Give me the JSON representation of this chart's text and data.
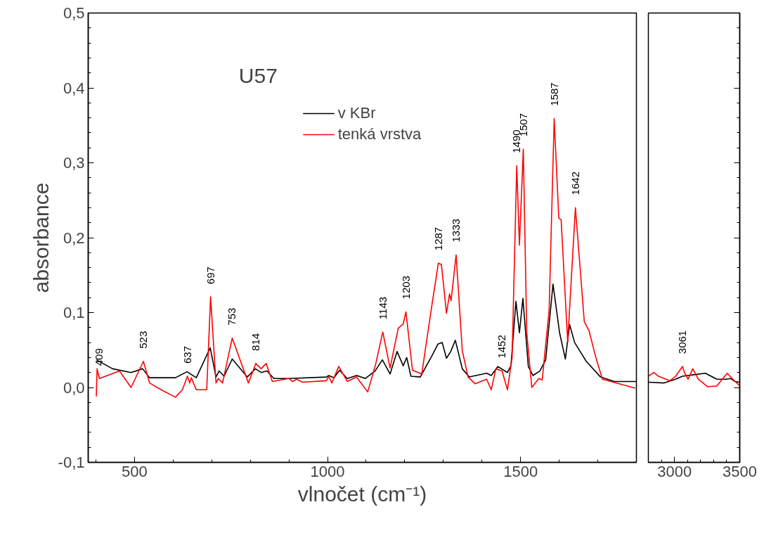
{
  "chart_data": [
    {
      "type": "line",
      "title": "U57",
      "xlabel": "vlnočet (cm⁻¹)",
      "ylabel": "absorbance",
      "xlim": [
        380,
        1800
      ],
      "ylim": [
        -0.1,
        0.5
      ],
      "xticks": [
        500,
        1000,
        1500
      ],
      "yticks": [
        {
          "value": -0.1,
          "label": "-0,1"
        },
        {
          "value": 0,
          "label": "0,0"
        },
        {
          "value": 0.1,
          "label": "0,1"
        },
        {
          "value": 0.2,
          "label": "0,2"
        },
        {
          "value": 0.3,
          "label": "0,3"
        },
        {
          "value": 0.4,
          "label": "0,4"
        },
        {
          "value": 0.5,
          "label": "0,5"
        }
      ],
      "grid": false,
      "legend": "top",
      "marker": "none",
      "line_style": "solid",
      "series": [
        {
          "name": "v KBr",
          "color": "#000000",
          "x": [
            401,
            443,
            491,
            521,
            539,
            606,
            636,
            660,
            696,
            711,
            719,
            732,
            753,
            792,
            813,
            828,
            843,
            861,
            900,
            997,
            1003,
            1017,
            1031,
            1051,
            1075,
            1098,
            1123,
            1142,
            1162,
            1180,
            1196,
            1205,
            1216,
            1240,
            1270,
            1286,
            1297,
            1308,
            1319,
            1331,
            1349,
            1367,
            1412,
            1424,
            1441,
            1466,
            1475,
            1488,
            1497,
            1506,
            1520,
            1532,
            1550,
            1565,
            1584,
            1601,
            1616,
            1627,
            1640,
            1670,
            1707,
            1743,
            1779,
            1799
          ],
          "values": [
            0.037,
            0.025,
            0.02,
            0.025,
            0.013,
            0.013,
            0.021,
            0.013,
            0.053,
            0.014,
            0.022,
            0.015,
            0.038,
            0.014,
            0.025,
            0.02,
            0.022,
            0.012,
            0.012,
            0.014,
            0.016,
            0.013,
            0.023,
            0.012,
            0.016,
            0.012,
            0.022,
            0.037,
            0.018,
            0.048,
            0.029,
            0.04,
            0.015,
            0.014,
            0.042,
            0.058,
            0.06,
            0.039,
            0.048,
            0.063,
            0.025,
            0.014,
            0.019,
            0.016,
            0.028,
            0.02,
            0.029,
            0.115,
            0.073,
            0.119,
            0.028,
            0.016,
            0.022,
            0.037,
            0.138,
            0.073,
            0.038,
            0.084,
            0.06,
            0.035,
            0.014,
            0.008,
            0.008,
            0.008
          ]
        },
        {
          "name": "tenká vrstva",
          "color": "#ff0000",
          "x": [
            401,
            403,
            409,
            425,
            461,
            491,
            523,
            539,
            569,
            606,
            624,
            637,
            643,
            647,
            660,
            687,
            697,
            711,
            717,
            728,
            753,
            795,
            814,
            828,
            841,
            857,
            900,
            909,
            920,
            935,
            997,
            1003,
            1011,
            1029,
            1051,
            1075,
            1104,
            1125,
            1143,
            1162,
            1183,
            1196,
            1203,
            1220,
            1244,
            1270,
            1287,
            1295,
            1308,
            1316,
            1320,
            1333,
            1349,
            1364,
            1382,
            1412,
            1424,
            1436,
            1452,
            1466,
            1478,
            1490,
            1497,
            1507,
            1516,
            1529,
            1547,
            1556,
            1574,
            1587,
            1599,
            1605,
            1622,
            1642,
            1665,
            1677,
            1695,
            1712,
            1797
          ],
          "values": [
            -0.012,
            0.025,
            0.012,
            0.015,
            0.022,
            0.0,
            0.035,
            0.006,
            -0.003,
            -0.013,
            -0.003,
            0.015,
            0.006,
            0.013,
            -0.003,
            -0.003,
            0.121,
            0.006,
            0.012,
            0.006,
            0.066,
            0.006,
            0.032,
            0.025,
            0.032,
            0.008,
            0.012,
            0.008,
            0.011,
            0.007,
            0.009,
            0.015,
            0.006,
            0.028,
            0.008,
            0.014,
            -0.006,
            0.032,
            0.074,
            0.026,
            0.079,
            0.085,
            0.101,
            0.023,
            0.018,
            0.109,
            0.166,
            0.164,
            0.099,
            0.125,
            0.116,
            0.177,
            0.049,
            0.014,
            0.005,
            0.011,
            -0.003,
            0.025,
            0.022,
            -0.003,
            0.04,
            0.296,
            0.19,
            0.318,
            0.073,
            0.0,
            0.012,
            0.01,
            0.104,
            0.359,
            0.226,
            0.224,
            0.061,
            0.24,
            0.088,
            0.076,
            0.04,
            0.011,
            -0.001
          ]
        }
      ],
      "annotations": [
        {
          "text": "409",
          "x": 409,
          "y": 0.012
        },
        {
          "text": "523",
          "x": 523,
          "y": 0.035
        },
        {
          "text": "637",
          "x": 637,
          "y": 0.015
        },
        {
          "text": "697",
          "x": 697,
          "y": 0.121
        },
        {
          "text": "753",
          "x": 753,
          "y": 0.066
        },
        {
          "text": "814",
          "x": 814,
          "y": 0.032
        },
        {
          "text": "1143",
          "x": 1143,
          "y": 0.074
        },
        {
          "text": "1203",
          "x": 1203,
          "y": 0.101
        },
        {
          "text": "1287",
          "x": 1287,
          "y": 0.166
        },
        {
          "text": "1333",
          "x": 1333,
          "y": 0.177
        },
        {
          "text": "1452",
          "x": 1452,
          "y": 0.022
        },
        {
          "text": "1490",
          "x": 1490,
          "y": 0.296
        },
        {
          "text": "1507",
          "x": 1507,
          "y": 0.318
        },
        {
          "text": "1587",
          "x": 1587,
          "y": 0.359
        },
        {
          "text": "1642",
          "x": 1642,
          "y": 0.24
        }
      ]
    },
    {
      "type": "line",
      "xlim": [
        2800,
        3500
      ],
      "ylim": [
        -0.1,
        0.5
      ],
      "xticks": [
        3000,
        3500
      ],
      "tick_labels": "x",
      "grid": false,
      "marker": "none",
      "line_style": "solid",
      "series": [
        {
          "color": "#000000",
          "x": [
            2800,
            2921,
            3009,
            3061,
            3147,
            3237,
            3325,
            3395,
            3430,
            3465,
            3496
          ],
          "values": [
            0.007,
            0.006,
            0.011,
            0.015,
            0.017,
            0.019,
            0.011,
            0.011,
            0.012,
            0.008,
            0.007
          ]
        },
        {
          "color": "#ff0000",
          "x": [
            2800,
            2842,
            2877,
            2965,
            3009,
            3061,
            3079,
            3105,
            3140,
            3184,
            3254,
            3325,
            3404,
            3447,
            3496
          ],
          "values": [
            0.015,
            0.02,
            0.015,
            0.009,
            0.015,
            0.028,
            0.019,
            0.011,
            0.025,
            0.011,
            0.001,
            0.002,
            0.019,
            0.011,
            0.003
          ]
        }
      ],
      "annotations": [
        {
          "text": "3061",
          "x": 3061,
          "y": 0.028
        }
      ]
    }
  ]
}
